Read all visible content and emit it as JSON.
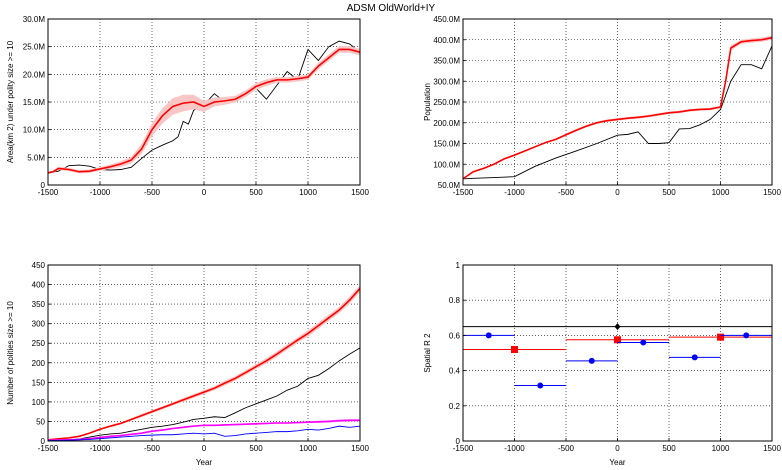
{
  "figure": {
    "title": "ADSM OldWorld+IY"
  },
  "chart_data": [
    {
      "type": "line",
      "xlabel": "",
      "ylabel": "Area(km 2) under polity size >= 10",
      "xlim": [
        -1500,
        1500
      ],
      "ylim": [
        0,
        30
      ],
      "xticks": [
        -1500,
        -1000,
        -500,
        0,
        500,
        1000,
        1500
      ],
      "xtick_labels": [
        "-1500",
        "-1000",
        "-500",
        "0",
        "500",
        "1000",
        "1500"
      ],
      "yticks": [
        0,
        5,
        10,
        15,
        20,
        25,
        30
      ],
      "ytick_labels": [
        "0",
        "5.0M",
        "10.0M",
        "15.0M",
        "20.0M",
        "25.0M",
        "30.0M"
      ],
      "grid": true,
      "series": [
        {
          "color": "#000000",
          "style": "line",
          "x": [
            -1500,
            -1400,
            -1300,
            -1200,
            -1100,
            -1000,
            -900,
            -800,
            -700,
            -600,
            -500,
            -400,
            -300,
            -250,
            -200,
            -150,
            -100,
            -50,
            0,
            100,
            200,
            300,
            400,
            500,
            600,
            700,
            800,
            900,
            1000,
            1100,
            1200,
            1300,
            1400,
            1500
          ],
          "y": [
            2.2,
            2.5,
            3.5,
            3.6,
            3.4,
            2.8,
            2.7,
            2.8,
            3.2,
            4.8,
            6.3,
            7.2,
            8.0,
            8.7,
            11.5,
            11.0,
            13.5,
            14.0,
            14.5,
            16.5,
            15.0,
            15.5,
            17.0,
            17.5,
            15.5,
            18.0,
            20.5,
            19.0,
            24.5,
            22.5,
            25.0,
            26.0,
            25.5,
            24.0
          ]
        },
        {
          "color": "#ff0000",
          "style": "band",
          "band_color": "#f9c6c6",
          "x": [
            -1500,
            -1450,
            -1400,
            -1300,
            -1200,
            -1100,
            -1000,
            -900,
            -800,
            -700,
            -600,
            -500,
            -400,
            -300,
            -200,
            -100,
            0,
            100,
            200,
            300,
            400,
            500,
            600,
            700,
            800,
            900,
            1000,
            1100,
            1200,
            1300,
            1400,
            1500
          ],
          "y": [
            2.2,
            2.4,
            3.0,
            2.8,
            2.4,
            2.5,
            2.9,
            3.3,
            3.8,
            4.5,
            6.5,
            10.0,
            12.5,
            14.2,
            14.8,
            15.0,
            14.2,
            15.0,
            15.2,
            15.5,
            16.5,
            17.8,
            18.5,
            19.0,
            19.0,
            19.2,
            19.5,
            21.5,
            23.0,
            24.5,
            24.5,
            24.0
          ],
          "band_halfwidth": [
            0.2,
            0.2,
            0.3,
            0.3,
            0.3,
            0.3,
            0.3,
            0.4,
            0.5,
            0.6,
            0.9,
            1.2,
            1.4,
            1.5,
            1.5,
            1.3,
            1.0,
            0.8,
            0.7,
            0.6,
            0.6,
            0.6,
            0.6,
            0.5,
            0.5,
            0.5,
            0.5,
            0.6,
            0.6,
            0.6,
            0.6,
            0.6
          ]
        }
      ]
    },
    {
      "type": "line",
      "xlabel": "",
      "ylabel": "Population",
      "xlim": [
        -1500,
        1500
      ],
      "ylim": [
        50,
        450
      ],
      "xticks": [
        -1500,
        -1000,
        -500,
        0,
        500,
        1000,
        1500
      ],
      "xtick_labels": [
        "-1500",
        "-1000",
        "-500",
        "0",
        "500",
        "1000",
        "1500"
      ],
      "yticks": [
        50,
        100,
        150,
        200,
        250,
        300,
        350,
        400,
        450
      ],
      "ytick_labels": [
        "50.0M",
        "100.0M",
        "150.0M",
        "200.0M",
        "250.0M",
        "300.0M",
        "350.0M",
        "400.0M",
        "450.0M"
      ],
      "grid": true,
      "series": [
        {
          "color": "#000000",
          "style": "line",
          "x": [
            -1500,
            -1400,
            -1200,
            -1000,
            -800,
            -600,
            -400,
            -200,
            0,
            100,
            200,
            300,
            400,
            500,
            600,
            700,
            800,
            900,
            1000,
            1100,
            1200,
            1300,
            1400,
            1500
          ],
          "y": [
            65,
            66,
            68,
            70,
            95,
            115,
            132,
            150,
            170,
            172,
            178,
            150,
            150,
            152,
            185,
            186,
            195,
            208,
            232,
            300,
            340,
            340,
            330,
            385
          ]
        },
        {
          "color": "#ff0000",
          "style": "band",
          "band_color": "#f9c6c6",
          "x": [
            -1500,
            -1400,
            -1300,
            -1200,
            -1100,
            -1000,
            -900,
            -800,
            -700,
            -600,
            -500,
            -400,
            -300,
            -200,
            -100,
            0,
            100,
            200,
            300,
            400,
            500,
            600,
            700,
            800,
            900,
            1000,
            1050,
            1100,
            1200,
            1300,
            1400,
            1500
          ],
          "y": [
            65,
            82,
            90,
            100,
            113,
            122,
            132,
            142,
            152,
            160,
            171,
            182,
            192,
            200,
            205,
            208,
            211,
            213,
            216,
            220,
            224,
            226,
            230,
            232,
            233,
            238,
            300,
            380,
            395,
            398,
            400,
            405
          ],
          "band_halfwidth": [
            1,
            2,
            2,
            2,
            2,
            2,
            2,
            2,
            2,
            2,
            3,
            3,
            3,
            3,
            3,
            3,
            3,
            3,
            3,
            3,
            3,
            3,
            3,
            3,
            3,
            3,
            6,
            6,
            5,
            5,
            5,
            5
          ]
        }
      ]
    },
    {
      "type": "line",
      "xlabel": "Year",
      "ylabel": "Number of polities size >= 10",
      "xlim": [
        -1500,
        1500
      ],
      "ylim": [
        0,
        450
      ],
      "xticks": [
        -1500,
        -1000,
        -500,
        0,
        500,
        1000,
        1500
      ],
      "xtick_labels": [
        "-1500",
        "-1000",
        "-500",
        "0",
        "500",
        "1000",
        "1500"
      ],
      "yticks": [
        0,
        50,
        100,
        150,
        200,
        250,
        300,
        350,
        400,
        450
      ],
      "ytick_labels": [
        "0",
        "50",
        "100",
        "150",
        "200",
        "250",
        "300",
        "350",
        "400",
        "450"
      ],
      "grid": true,
      "series": [
        {
          "color": "#ff0000",
          "style": "band",
          "band_color": "#f9c6c6",
          "x": [
            -1500,
            -1300,
            -1200,
            -1100,
            -1000,
            -900,
            -800,
            -700,
            -600,
            -500,
            -400,
            -300,
            -200,
            -100,
            0,
            100,
            200,
            300,
            400,
            500,
            600,
            700,
            800,
            900,
            1000,
            1100,
            1200,
            1300,
            1400,
            1500
          ],
          "y": [
            3,
            8,
            12,
            20,
            30,
            38,
            45,
            55,
            65,
            75,
            85,
            95,
            105,
            115,
            125,
            135,
            148,
            160,
            175,
            190,
            205,
            222,
            240,
            258,
            275,
            295,
            315,
            335,
            360,
            390
          ],
          "band_halfwidth": [
            1,
            1,
            2,
            2,
            2,
            3,
            3,
            3,
            4,
            4,
            4,
            4,
            5,
            5,
            5,
            5,
            6,
            6,
            6,
            6,
            7,
            7,
            7,
            7,
            8,
            8,
            8,
            8,
            9,
            9
          ]
        },
        {
          "color": "#000000",
          "style": "line",
          "x": [
            -1500,
            -1300,
            -1200,
            -1100,
            -1000,
            -900,
            -800,
            -700,
            -600,
            -500,
            -400,
            -300,
            -200,
            -100,
            0,
            100,
            200,
            300,
            400,
            500,
            600,
            700,
            800,
            900,
            1000,
            1100,
            1200,
            1300,
            1400,
            1500
          ],
          "y": [
            2,
            3,
            5,
            10,
            15,
            18,
            20,
            25,
            30,
            35,
            38,
            42,
            48,
            55,
            58,
            62,
            60,
            72,
            85,
            95,
            105,
            115,
            130,
            140,
            160,
            168,
            185,
            205,
            222,
            238
          ]
        },
        {
          "color": "#ff00ff",
          "style": "band",
          "band_color": "#f5b8f5",
          "x": [
            -1500,
            -1300,
            -1200,
            -1100,
            -1000,
            -900,
            -800,
            -700,
            -600,
            -500,
            -400,
            -300,
            -200,
            -100,
            0,
            100,
            200,
            300,
            400,
            500,
            600,
            700,
            800,
            900,
            1000,
            1100,
            1200,
            1300,
            1400,
            1500
          ],
          "y": [
            2,
            3,
            4,
            6,
            9,
            12,
            14,
            17,
            20,
            25,
            28,
            32,
            35,
            38,
            40,
            40,
            41,
            42,
            43,
            44,
            45,
            46,
            46,
            47,
            48,
            49,
            50,
            52,
            53,
            53
          ],
          "band_halfwidth": [
            0,
            1,
            1,
            1,
            1,
            1,
            1,
            1,
            2,
            2,
            2,
            2,
            2,
            2,
            2,
            2,
            2,
            2,
            2,
            2,
            2,
            2,
            2,
            2,
            2,
            3,
            3,
            3,
            3,
            3
          ]
        },
        {
          "color": "#0000ff",
          "style": "line",
          "x": [
            -1500,
            -1300,
            -1200,
            -1100,
            -1000,
            -900,
            -800,
            -700,
            -600,
            -500,
            -400,
            -300,
            -200,
            -100,
            0,
            100,
            200,
            300,
            400,
            500,
            600,
            700,
            800,
            900,
            1000,
            1100,
            1200,
            1300,
            1400,
            1500
          ],
          "y": [
            1,
            2,
            3,
            4,
            6,
            8,
            10,
            12,
            14,
            15,
            16,
            16,
            18,
            20,
            18,
            20,
            12,
            14,
            18,
            20,
            22,
            24,
            24,
            26,
            30,
            28,
            32,
            38,
            35,
            38
          ]
        }
      ]
    },
    {
      "type": "scatter",
      "xlabel": "Year",
      "ylabel": "Spatial R 2",
      "xlim": [
        -1500,
        1500
      ],
      "ylim": [
        0,
        1
      ],
      "xticks": [
        -1500,
        -1000,
        -500,
        0,
        500,
        1000,
        1500
      ],
      "xtick_labels": [
        "-1500",
        "-1000",
        "-500",
        "0",
        "500",
        "1000",
        "1500"
      ],
      "yticks": [
        0,
        0.2,
        0.4,
        0.6,
        0.8,
        1
      ],
      "ytick_labels": [
        "0",
        "0.2",
        "0.4",
        "0.6",
        "0.8",
        "1"
      ],
      "grid": true,
      "series": [
        {
          "color": "#000000",
          "marker": "diamond",
          "points": [
            {
              "x": 0,
              "y": 0.65,
              "x_from": -1500,
              "x_to": 1500
            }
          ]
        },
        {
          "color": "#ff0000",
          "marker": "square",
          "points": [
            {
              "x": -1000,
              "y": 0.52,
              "x_from": -1500,
              "x_to": -500
            },
            {
              "x": 0,
              "y": 0.575,
              "x_from": -500,
              "x_to": 500
            },
            {
              "x": 1000,
              "y": 0.59,
              "x_from": 500,
              "x_to": 1500
            }
          ]
        },
        {
          "color": "#0000ff",
          "marker": "circle",
          "points": [
            {
              "x": -1250,
              "y": 0.6,
              "x_from": -1500,
              "x_to": -1000
            },
            {
              "x": -750,
              "y": 0.315,
              "x_from": -1000,
              "x_to": -500
            },
            {
              "x": -250,
              "y": 0.455,
              "x_from": -500,
              "x_to": 0
            },
            {
              "x": 250,
              "y": 0.56,
              "x_from": 0,
              "x_to": 500
            },
            {
              "x": 750,
              "y": 0.475,
              "x_from": 500,
              "x_to": 1000
            },
            {
              "x": 1250,
              "y": 0.6,
              "x_from": 1000,
              "x_to": 1500
            }
          ]
        }
      ]
    }
  ]
}
